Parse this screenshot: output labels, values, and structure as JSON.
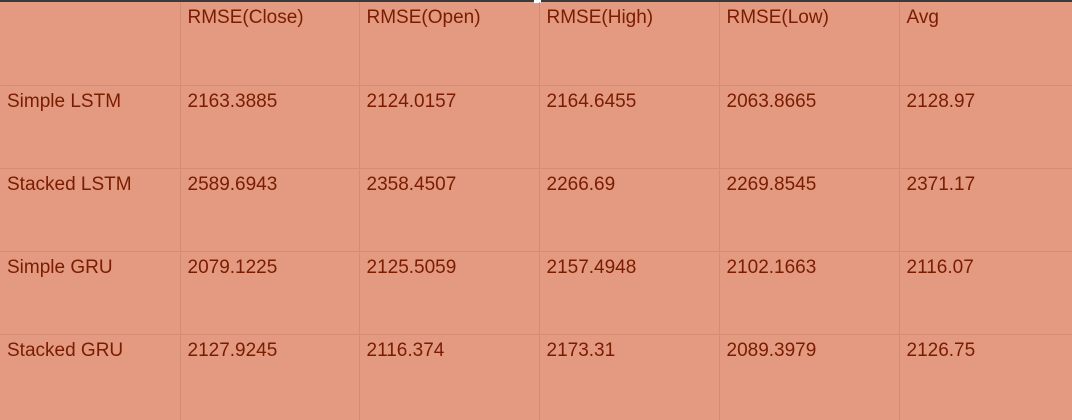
{
  "table": {
    "headers": [
      "",
      "RMSE(Close)",
      "RMSE(Open)",
      "RMSE(High)",
      "RMSE(Low)",
      "Avg"
    ],
    "rows": [
      [
        "Simple LSTM",
        "2163.3885",
        "2124.0157",
        "2164.6455",
        "2063.8665",
        "2128.97"
      ],
      [
        "Stacked LSTM",
        "2589.6943",
        "2358.4507",
        "2266.69",
        "2269.8545",
        "2371.17"
      ],
      [
        "Simple GRU",
        "2079.1225",
        "2125.5059",
        "2157.4948",
        "2102.1663",
        "2116.07"
      ],
      [
        "Stacked GRU",
        "2127.9245",
        "2116.374",
        "2173.31",
        "2089.3979",
        "2126.75"
      ]
    ]
  },
  "colors": {
    "cell_background": "#e39a80",
    "text": "#7a1c00",
    "grid_line": "#d48c72",
    "top_border": "#3a3a3a"
  }
}
